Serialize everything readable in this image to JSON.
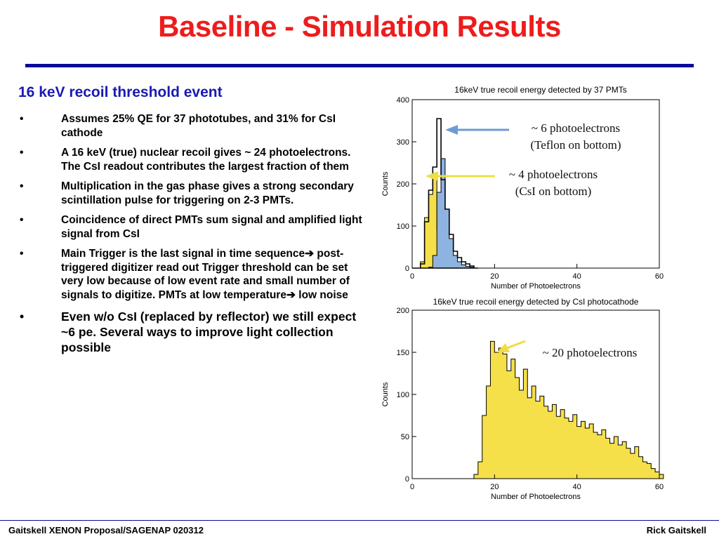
{
  "slide": {
    "title": "Baseline - Simulation Results",
    "subheading": "16 keV recoil threshold event",
    "bullets": [
      {
        "text": "Assumes 25% QE for 37 phototubes, and 31% for CsI cathode"
      },
      {
        "text": "A 16 keV (true) nuclear recoil gives ~ 24 photoelectrons. The  CsI readout contributes the largest fraction of them"
      },
      {
        "text": " Multiplication in the gas phase gives a strong secondary scintillation pulse for triggering on 2-3 PMTs."
      },
      {
        "text": "Coincidence of direct  PMTs sum signal and amplified light signal from CsI"
      },
      {
        "part1": "Main Trigger is the last signal in time sequence",
        "arrow": "➔",
        "part2": " post-triggered digitizer read out Trigger threshold can be set very low because of low event rate and small number of signals to digitize. PMTs  at low temperature",
        "arrow2": "➔",
        "part3": " low noise"
      },
      {
        "text": "Even w/o CsI (replaced by reflector) we still expect ~6 pe. Several ways to improve light collection possible"
      }
    ],
    "bullet_glyph": "•"
  },
  "footer": {
    "left": "Gaitskell  XENON Proposal/SAGENAP 020312",
    "right": "Rick Gaitskell"
  },
  "chart_data": [
    {
      "type": "bar",
      "title": "16keV true recoil energy detected by 37 PMTs",
      "xlabel": "Number of Photoelectrons",
      "ylabel": "Counts",
      "xlim": [
        0,
        60
      ],
      "ylim": [
        0,
        400
      ],
      "xticks": [
        0,
        20,
        40,
        60
      ],
      "yticks": [
        0,
        100,
        200,
        300,
        400
      ],
      "x": [
        0,
        1,
        2,
        3,
        4,
        5,
        6,
        7,
        8,
        9,
        10,
        11,
        12,
        13,
        14,
        15
      ],
      "series": [
        {
          "name": "",
          "color": "#f5e04a",
          "values": [
            0,
            0,
            15,
            120,
            175,
            215,
            90,
            40,
            10,
            2,
            0,
            0,
            0,
            0,
            0,
            0
          ]
        },
        {
          "name": "",
          "color": "#8fb3e0",
          "values": [
            0,
            0,
            0,
            0,
            2,
            30,
            180,
            260,
            140,
            70,
            30,
            15,
            8,
            4,
            2,
            0
          ]
        },
        {
          "name": "",
          "color": "none",
          "values": [
            0,
            0,
            10,
            110,
            185,
            240,
            355,
            210,
            140,
            80,
            40,
            25,
            15,
            10,
            5,
            0
          ]
        }
      ],
      "annotations": [
        {
          "line1": "~ 6 photoelectrons",
          "line2": "(Teflon on bottom)",
          "color": "#6e9ad6"
        },
        {
          "line1": "~ 4 photoelectrons",
          "line2": "(CsI on bottom)",
          "color": "#f0dc45"
        }
      ]
    },
    {
      "type": "bar",
      "title": "16keV true recoil energy detected by CsI photocathode",
      "xlabel": "Number of Photoelectrons",
      "ylabel": "Counts",
      "xlim": [
        0,
        60
      ],
      "ylim": [
        0,
        200
      ],
      "xticks": [
        0,
        20,
        40,
        60
      ],
      "yticks": [
        0,
        50,
        100,
        150,
        200
      ],
      "x": [
        15,
        16,
        17,
        18,
        19,
        20,
        21,
        22,
        23,
        24,
        25,
        26,
        27,
        28,
        29,
        30,
        31,
        32,
        33,
        34,
        35,
        36,
        37,
        38,
        39,
        40,
        41,
        42,
        43,
        44,
        45,
        46,
        47,
        48,
        49,
        50,
        51,
        52,
        53,
        54,
        55,
        56,
        57,
        58,
        59,
        60
      ],
      "series": [
        {
          "name": "",
          "color": "#f5e04a",
          "values": [
            5,
            20,
            75,
            110,
            163,
            150,
            155,
            148,
            128,
            142,
            120,
            105,
            130,
            96,
            110,
            92,
            98,
            86,
            80,
            88,
            74,
            82,
            72,
            68,
            76,
            62,
            68,
            60,
            65,
            55,
            52,
            58,
            48,
            42,
            50,
            40,
            44,
            36,
            30,
            38,
            26,
            20,
            18,
            12,
            8,
            5
          ]
        }
      ],
      "annotations": [
        {
          "line1": "~ 20 photoelectrons",
          "color": "#f0dc45"
        }
      ]
    }
  ]
}
